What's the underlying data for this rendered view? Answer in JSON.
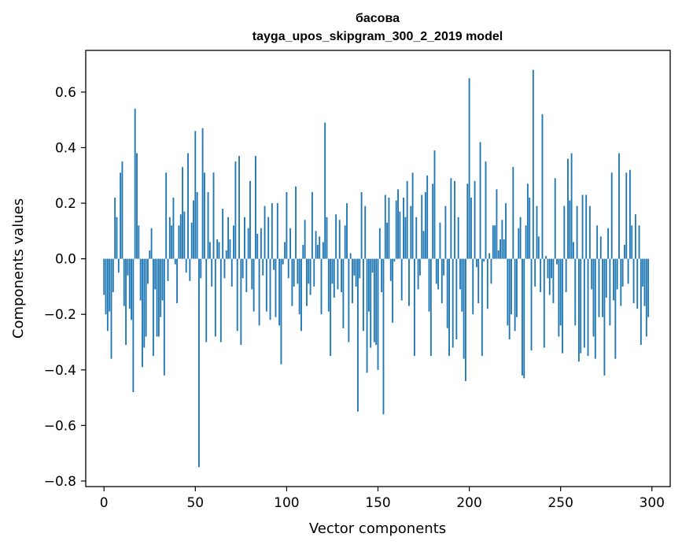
{
  "chart_data": {
    "type": "bar",
    "title": "басова",
    "subtitle": "tayga_upos_skipgram_300_2_2019 model",
    "xlabel": "Vector components",
    "ylabel": "Components values",
    "xlim": [
      -10,
      310
    ],
    "ylim": [
      -0.82,
      0.75
    ],
    "x_ticks": [
      0,
      50,
      100,
      150,
      200,
      250,
      300
    ],
    "y_ticks": [
      -0.8,
      -0.6,
      -0.4,
      -0.2,
      0.0,
      0.2,
      0.4,
      0.6
    ],
    "x_tick_labels": [
      "0",
      "50",
      "100",
      "150",
      "200",
      "250",
      "300"
    ],
    "y_tick_labels": [
      "−0.8",
      "−0.6",
      "−0.4",
      "−0.2",
      "0.0",
      "0.2",
      "0.4",
      "0.6"
    ],
    "color": "#1f77b4",
    "values": [
      -0.13,
      -0.2,
      -0.26,
      -0.19,
      -0.36,
      -0.12,
      0.22,
      0.15,
      -0.05,
      0.31,
      0.35,
      -0.17,
      -0.31,
      -0.06,
      -0.18,
      -0.22,
      -0.48,
      0.54,
      0.38,
      0.12,
      -0.15,
      -0.39,
      -0.32,
      -0.28,
      -0.09,
      0.03,
      0.11,
      -0.35,
      -0.11,
      -0.28,
      -0.28,
      -0.21,
      -0.15,
      -0.42,
      0.31,
      -0.08,
      0.15,
      0.12,
      0.22,
      -0.02,
      -0.16,
      0.12,
      0.16,
      0.33,
      0.17,
      -0.05,
      0.38,
      -0.08,
      0.13,
      0.21,
      0.46,
      0.24,
      -0.75,
      -0.07,
      0.47,
      0.31,
      -0.3,
      0.24,
      0.06,
      -0.1,
      0.31,
      -0.28,
      0.07,
      0.06,
      -0.3,
      0.18,
      -0.07,
      0.03,
      0.15,
      0.07,
      -0.1,
      0.12,
      0.35,
      -0.26,
      0.37,
      -0.31,
      -0.07,
      0.15,
      -0.12,
      0.11,
      0.28,
      -0.11,
      -0.19,
      0.37,
      0.09,
      -0.24,
      0.11,
      -0.06,
      0.19,
      -0.19,
      0.15,
      -0.22,
      0.2,
      -0.04,
      -0.21,
      0.2,
      -0.24,
      -0.38,
      -0.02,
      0.06,
      0.24,
      -0.07,
      0.11,
      -0.17,
      -0.1,
      0.26,
      -0.09,
      -0.2,
      -0.26,
      0.05,
      0.14,
      -0.17,
      -0.09,
      -0.13,
      0.24,
      -0.1,
      0.1,
      0.05,
      0.08,
      -0.2,
      0.06,
      0.49,
      0.15,
      -0.19,
      -0.35,
      -0.09,
      -0.14,
      0.16,
      -0.11,
      0.14,
      -0.12,
      -0.25,
      0.12,
      0.2,
      -0.3,
      0.02,
      -0.16,
      -0.06,
      -0.1,
      -0.55,
      -0.07,
      0.24,
      -0.26,
      0.19,
      -0.41,
      -0.19,
      -0.32,
      -0.05,
      -0.3,
      -0.31,
      -0.4,
      0.11,
      -0.12,
      -0.56,
      0.23,
      0.13,
      0.22,
      -0.08,
      -0.23,
      -0.01,
      0.21,
      0.25,
      0.17,
      -0.15,
      0.22,
      0.15,
      0.28,
      -0.17,
      0.19,
      0.31,
      -0.35,
      0.15,
      -0.11,
      -0.06,
      0.23,
      0.1,
      0.24,
      0.3,
      -0.19,
      -0.35,
      0.27,
      0.39,
      -0.09,
      -0.11,
      0.13,
      -0.16,
      -0.06,
      0.19,
      -0.25,
      -0.35,
      0.29,
      -0.32,
      0.28,
      -0.29,
      0.15,
      -0.11,
      -0.19,
      -0.36,
      -0.44,
      0.27,
      0.65,
      0.22,
      -0.2,
      0.28,
      -0.03,
      -0.16,
      0.42,
      -0.35,
      -0.01,
      0.35,
      -0.18,
      0.02,
      -0.09,
      0.12,
      0.12,
      0.25,
      0.03,
      0.07,
      0.14,
      0.07,
      0.2,
      -0.24,
      -0.29,
      -0.2,
      0.33,
      -0.26,
      -0.21,
      0.11,
      0.15,
      -0.42,
      -0.43,
      0.12,
      0.27,
      0.22,
      -0.33,
      0.68,
      -0.1,
      0.19,
      0.08,
      -0.12,
      0.52,
      -0.32,
      0.01,
      -0.07,
      -0.13,
      -0.07,
      -0.16,
      0.29,
      -0.02,
      -0.28,
      -0.24,
      -0.34,
      0.19,
      -0.12,
      0.36,
      0.21,
      0.38,
      0.06,
      -0.24,
      0.19,
      -0.37,
      -0.34,
      0.23,
      -0.32,
      0.23,
      -0.35,
      0.19,
      -0.11,
      -0.28,
      -0.36,
      0.12,
      -0.21,
      0.08,
      -0.21,
      -0.42,
      -0.14,
      0.11,
      -0.24,
      0.31,
      -0.15,
      -0.36,
      -0.11,
      0.38,
      -0.17,
      -0.1,
      0.05,
      0.31,
      -0.09,
      0.32,
      0.12,
      -0.16,
      0.16,
      -0.18,
      0.12,
      -0.31,
      -0.1,
      -0.17,
      -0.28,
      -0.21
    ]
  }
}
